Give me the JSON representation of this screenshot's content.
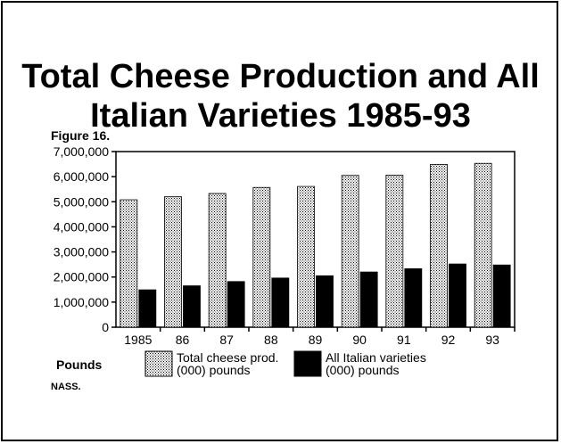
{
  "title_line1": "Total Cheese Production and All",
  "title_line2": "Italian Varieties 1985-93",
  "figure_label": "Figure 16.",
  "units_label": "Pounds",
  "source": "NASS.",
  "chart_data": {
    "type": "bar",
    "categories": [
      "1985",
      "86",
      "87",
      "88",
      "89",
      "90",
      "91",
      "92",
      "93"
    ],
    "yticks": [
      "0",
      "1,000,000",
      "2,000,000",
      "3,000,000",
      "4,000,000",
      "5,000,000",
      "6,000,000",
      "7,000,000"
    ],
    "ylim": [
      0,
      7000000
    ],
    "series": [
      {
        "name": "Total cheese prod. (000) pounds",
        "legend_lines": [
          "Total cheese prod.",
          "(000) pounds"
        ],
        "pattern": "dotted",
        "values": [
          5080000,
          5200000,
          5330000,
          5570000,
          5610000,
          6050000,
          6060000,
          6490000,
          6530000
        ]
      },
      {
        "name": "All Italian varieties (000) pounds",
        "legend_lines": [
          "All Italian varieties",
          "(000) pounds"
        ],
        "pattern": "solid",
        "values": [
          1490000,
          1650000,
          1820000,
          1960000,
          2050000,
          2200000,
          2330000,
          2520000,
          2480000
        ]
      }
    ],
    "legend_placement": "bottom",
    "grid": false
  }
}
